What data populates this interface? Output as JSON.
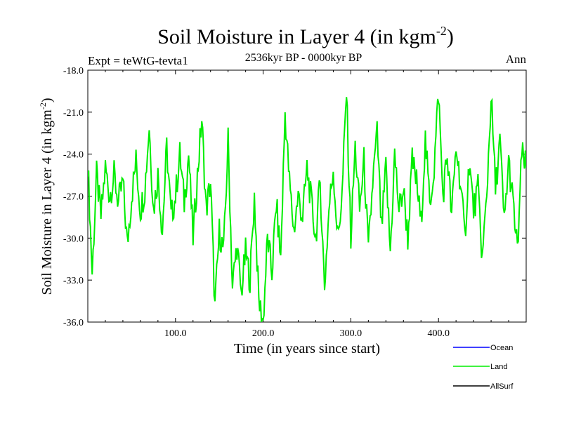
{
  "chart_data": {
    "type": "line",
    "title_main": "Soil Moisture in Layer 4 (in kgm",
    "title_sup": "-2",
    "title_close": ")",
    "subtitle": "2536kyr BP - 0000kyr BP",
    "expt_label": "Expt = teWtG-tevta1",
    "season_label": "Ann",
    "xlabel": "Time (in years since start)",
    "ylabel_main": "Soil Moisture in Layer 4 (in kgm",
    "ylabel_sup": "-2",
    "ylabel_close": ")",
    "xlim": [
      0,
      500
    ],
    "ylim": [
      -36,
      -18
    ],
    "x_ticks": [
      100,
      200,
      300,
      400
    ],
    "x_tick_labels": [
      "100.0",
      "200.0",
      "300.0",
      "400.0"
    ],
    "y_ticks": [
      -18,
      -21,
      -24,
      -27,
      -30,
      -33,
      -36
    ],
    "y_tick_labels": [
      "-18.0",
      "-21.0",
      "-24.0",
      "-27.0",
      "-30.0",
      "-33.0",
      "-36.0"
    ],
    "legend_position": "bottom-right",
    "series": [
      {
        "name": "Ocean",
        "color": "#0000ff",
        "visible_in_plot": false
      },
      {
        "name": "Land",
        "color": "#00ee00",
        "visible_in_plot": true,
        "x": [
          0,
          5,
          10,
          15,
          20,
          25,
          30,
          35,
          40,
          45,
          50,
          55,
          60,
          65,
          70,
          75,
          80,
          85,
          90,
          95,
          100,
          105,
          110,
          115,
          120,
          125,
          130,
          135,
          140,
          145,
          150,
          155,
          160,
          165,
          170,
          175,
          180,
          185,
          190,
          195,
          200,
          205,
          210,
          215,
          220,
          225,
          230,
          235,
          240,
          245,
          250,
          255,
          260,
          265,
          270,
          275,
          280,
          285,
          290,
          295,
          300,
          305,
          310,
          315,
          320,
          325,
          330,
          335,
          340,
          345,
          350,
          355,
          360,
          365,
          370,
          375,
          380,
          385,
          390,
          395,
          400,
          405,
          410,
          415,
          420,
          425,
          430,
          435,
          440,
          445,
          450,
          455,
          460,
          465,
          470,
          475,
          480,
          485,
          490,
          495,
          500
        ],
        "y": [
          -24.5,
          -32.5,
          -25.5,
          -28.5,
          -25.0,
          -27.0,
          -25.5,
          -27.5,
          -26.0,
          -30.5,
          -27.0,
          -24.5,
          -28.0,
          -26.5,
          -22.0,
          -28.0,
          -25.5,
          -29.5,
          -23.5,
          -28.5,
          -27.0,
          -24.0,
          -27.5,
          -24.0,
          -30.0,
          -25.5,
          -21.5,
          -28.0,
          -26.0,
          -35.0,
          -29.5,
          -31.0,
          -23.0,
          -33.5,
          -30.5,
          -34.0,
          -31.0,
          -33.0,
          -27.0,
          -34.5,
          -36.0,
          -30.0,
          -32.5,
          -27.5,
          -31.5,
          -21.0,
          -26.0,
          -29.5,
          -27.0,
          -28.5,
          -25.0,
          -27.5,
          -30.0,
          -26.0,
          -33.5,
          -28.0,
          -25.0,
          -30.0,
          -27.0,
          -19.5,
          -30.0,
          -23.5,
          -28.0,
          -24.5,
          -31.0,
          -26.0,
          -22.5,
          -29.5,
          -25.0,
          -31.0,
          -24.0,
          -28.0,
          -26.5,
          -30.0,
          -24.5,
          -26.0,
          -29.0,
          -23.0,
          -27.5,
          -25.0,
          -19.5,
          -27.0,
          -24.0,
          -28.5,
          -23.5,
          -26.0,
          -30.0,
          -24.5,
          -28.0,
          -26.5,
          -31.5,
          -27.0,
          -19.8,
          -26.5,
          -23.0,
          -29.0,
          -24.5,
          -27.5,
          -31.0,
          -24.0,
          -25.0
        ]
      },
      {
        "name": "AllSurf",
        "color": "#000000",
        "visible_in_plot": false
      }
    ]
  }
}
